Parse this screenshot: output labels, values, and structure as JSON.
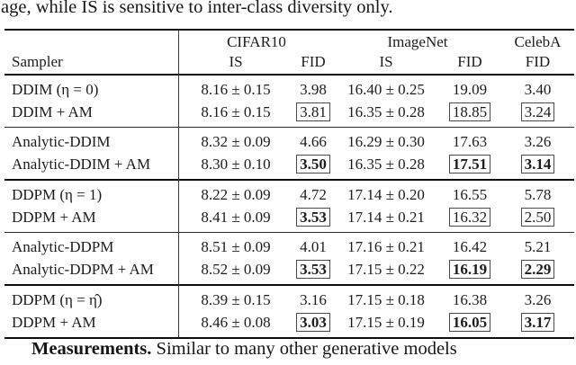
{
  "page": {
    "top_text": "age, while IS is sensitive to inter-class diversity only.",
    "bottom_text_bold": "Measurements.",
    "bottom_text_rest": " Similar to many other generative models",
    "ink_color": "#1c1c1c",
    "background_color": "#ffffff"
  },
  "table": {
    "header": {
      "sampler_label": "Sampler",
      "groups": [
        {
          "label": "CIFAR10",
          "sub": [
            "IS",
            "FID"
          ]
        },
        {
          "label": "ImageNet",
          "sub": [
            "IS",
            "FID"
          ]
        },
        {
          "label": "CelebA",
          "sub": [
            "FID"
          ]
        }
      ]
    },
    "columns": [
      "cifar10-is",
      "cifar10-fid",
      "imagenet-is",
      "imagenet-fid",
      "celeba-fid"
    ],
    "groups": [
      {
        "sections": [
          {
            "rows": [
              {
                "sampler": "DDIM (η = 0)",
                "values": [
                  {
                    "t": "8.16 ± 0.15"
                  },
                  {
                    "t": "3.98"
                  },
                  {
                    "t": "16.40 ± 0.25"
                  },
                  {
                    "t": "19.09"
                  },
                  {
                    "t": "3.40"
                  }
                ]
              },
              {
                "sampler": "DDIM + AM",
                "values": [
                  {
                    "t": "8.16 ± 0.15"
                  },
                  {
                    "t": "3.81",
                    "boxed": true
                  },
                  {
                    "t": "16.35 ± 0.28"
                  },
                  {
                    "t": "18.85",
                    "boxed": true
                  },
                  {
                    "t": "3.24",
                    "boxed": true
                  }
                ]
              }
            ]
          },
          {
            "rows": [
              {
                "sampler": "Analytic-DDIM",
                "values": [
                  {
                    "t": "8.32 ± 0.09"
                  },
                  {
                    "t": "4.66"
                  },
                  {
                    "t": "16.29 ± 0.30"
                  },
                  {
                    "t": "17.63"
                  },
                  {
                    "t": "3.26"
                  }
                ]
              },
              {
                "sampler": "Analytic-DDIM + AM",
                "values": [
                  {
                    "t": "8.30 ± 0.10"
                  },
                  {
                    "t": "3.50",
                    "boxed": true,
                    "bold": true
                  },
                  {
                    "t": "16.35 ± 0.28"
                  },
                  {
                    "t": "17.51",
                    "boxed": true,
                    "bold": true
                  },
                  {
                    "t": "3.14",
                    "boxed": true,
                    "bold": true
                  }
                ]
              }
            ]
          }
        ]
      },
      {
        "sections": [
          {
            "rows": [
              {
                "sampler": "DDPM (η = 1)",
                "values": [
                  {
                    "t": "8.22 ± 0.09"
                  },
                  {
                    "t": "4.72"
                  },
                  {
                    "t": "17.14 ± 0.20"
                  },
                  {
                    "t": "16.55"
                  },
                  {
                    "t": "5.78"
                  }
                ]
              },
              {
                "sampler": "DDPM + AM",
                "values": [
                  {
                    "t": "8.41 ± 0.09"
                  },
                  {
                    "t": "3.53",
                    "boxed": true,
                    "bold": true
                  },
                  {
                    "t": "17.14 ± 0.21"
                  },
                  {
                    "t": "16.32",
                    "boxed": true
                  },
                  {
                    "t": "2.50",
                    "boxed": true
                  }
                ]
              }
            ]
          },
          {
            "rows": [
              {
                "sampler": "Analytic-DDPM",
                "values": [
                  {
                    "t": "8.51 ± 0.09"
                  },
                  {
                    "t": "4.01"
                  },
                  {
                    "t": "17.16 ± 0.21"
                  },
                  {
                    "t": "16.42"
                  },
                  {
                    "t": "5.21"
                  }
                ]
              },
              {
                "sampler": "Analytic-DDPM + AM",
                "values": [
                  {
                    "t": "8.52 ± 0.09"
                  },
                  {
                    "t": "3.53",
                    "boxed": true,
                    "bold": true
                  },
                  {
                    "t": "17.15 ± 0.22"
                  },
                  {
                    "t": "16.19",
                    "boxed": true,
                    "bold": true
                  },
                  {
                    "t": "2.29",
                    "boxed": true,
                    "bold": true
                  }
                ]
              }
            ]
          }
        ]
      },
      {
        "sections": [
          {
            "rows": [
              {
                "sampler": "DDPM (η = η̂)",
                "values": [
                  {
                    "t": "8.39 ± 0.15"
                  },
                  {
                    "t": "3.16"
                  },
                  {
                    "t": "17.15 ± 0.18"
                  },
                  {
                    "t": "16.38"
                  },
                  {
                    "t": "3.26"
                  }
                ]
              },
              {
                "sampler": "DDPM + AM",
                "values": [
                  {
                    "t": "8.46 ± 0.08"
                  },
                  {
                    "t": "3.03",
                    "boxed": true,
                    "bold": true
                  },
                  {
                    "t": "17.15 ± 0.19"
                  },
                  {
                    "t": "16.05",
                    "boxed": true,
                    "bold": true
                  },
                  {
                    "t": "3.17",
                    "boxed": true,
                    "bold": true
                  }
                ]
              }
            ]
          }
        ]
      }
    ]
  }
}
